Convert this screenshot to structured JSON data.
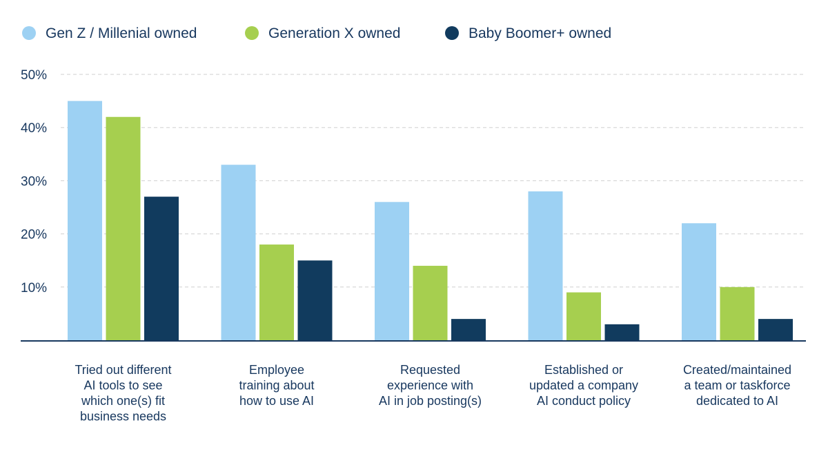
{
  "chart_data": {
    "type": "bar",
    "categories": [
      [
        "Tried out different",
        "AI tools to see",
        "which one(s) fit",
        "business needs"
      ],
      [
        "Employee",
        "training about",
        "how to use AI"
      ],
      [
        "Requested",
        "experience with",
        "AI in job posting(s)"
      ],
      [
        "Established or",
        "updated a company",
        "AI conduct policy"
      ],
      [
        "Created/maintained",
        "a team or taskforce",
        "dedicated to AI"
      ]
    ],
    "series": [
      {
        "name": "Gen Z / Millenial owned",
        "color": "#9dd1f3",
        "values": [
          45,
          33,
          26,
          28,
          22
        ]
      },
      {
        "name": "Generation X owned",
        "color": "#a6cf4f",
        "values": [
          42,
          18,
          14,
          9,
          10
        ]
      },
      {
        "name": "Baby Boomer+ owned",
        "color": "#113b5e",
        "values": [
          27,
          15,
          4,
          3,
          4
        ]
      }
    ],
    "y_ticks": [
      "10%",
      "20%",
      "30%",
      "40%",
      "50%"
    ],
    "y_tick_values": [
      10,
      20,
      30,
      40,
      50
    ],
    "ylim": [
      0,
      50
    ],
    "grid": true,
    "legend_position": "top-left"
  }
}
